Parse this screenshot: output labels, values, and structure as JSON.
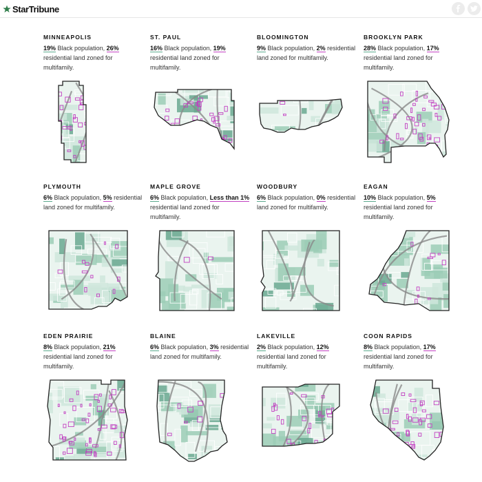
{
  "header": {
    "brand": "StarTribune",
    "share_facebook": "facebook-icon",
    "share_twitter": "twitter-icon"
  },
  "colors": {
    "outline": "#222222",
    "base_fill": "#eaf4ef",
    "light_green": "#cfe6dc",
    "mid_green": "#9cccb6",
    "dark_green": "#6aa890",
    "road": "#8a8a8a",
    "multifamily": "#c13fc1"
  },
  "suffix_black": "Black population,",
  "suffix_land": "residential land zoned for multifamily.",
  "cities": [
    {
      "name": "MINNEAPOLIS",
      "black_pct": "19%",
      "multifamily_pct": "26%"
    },
    {
      "name": "ST. PAUL",
      "black_pct": "16%",
      "multifamily_pct": "19%"
    },
    {
      "name": "BLOOMINGTON",
      "black_pct": "9%",
      "multifamily_pct": "2%"
    },
    {
      "name": "BROOKLYN PARK",
      "black_pct": "28%",
      "multifamily_pct": "17%"
    },
    {
      "name": "PLYMOUTH",
      "black_pct": "6%",
      "multifamily_pct": "5%"
    },
    {
      "name": "MAPLE GROVE",
      "black_pct": "6%",
      "multifamily_pct": "Less than 1%"
    },
    {
      "name": "WOODBURY",
      "black_pct": "6%",
      "multifamily_pct": "0%"
    },
    {
      "name": "EAGAN",
      "black_pct": "10%",
      "multifamily_pct": "5%"
    },
    {
      "name": "EDEN PRAIRIE",
      "black_pct": "8%",
      "multifamily_pct": "21%"
    },
    {
      "name": "BLAINE",
      "black_pct": "6%",
      "multifamily_pct": "3%"
    },
    {
      "name": "LAKEVILLE",
      "black_pct": "2%",
      "multifamily_pct": "12%"
    },
    {
      "name": "COON RAPIDS",
      "black_pct": "8%",
      "multifamily_pct": "17%"
    }
  ]
}
